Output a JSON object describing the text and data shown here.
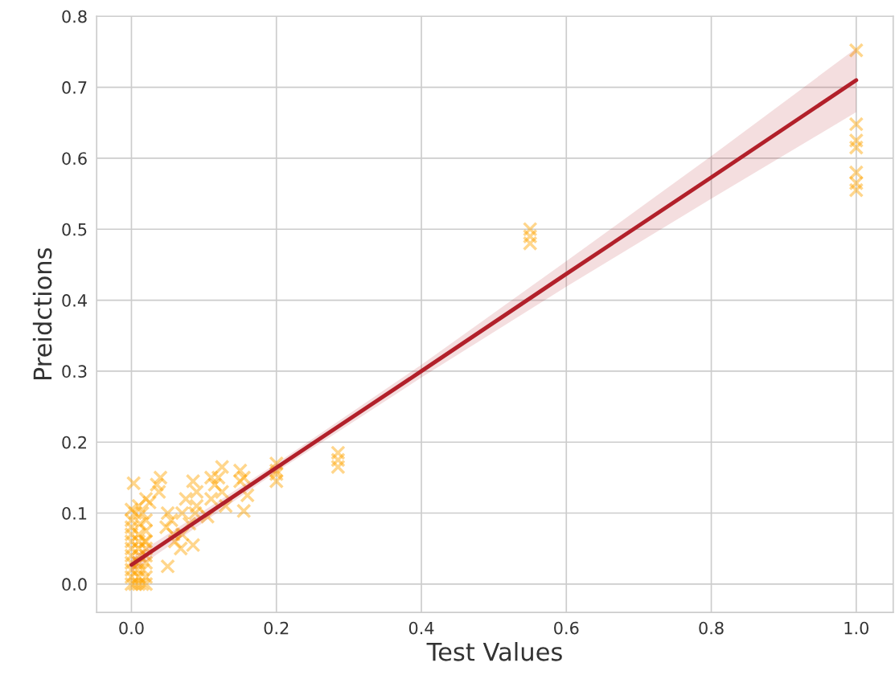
{
  "chart_data": {
    "type": "scatter",
    "xlabel": "Test Values",
    "ylabel": "Preidctions",
    "xlim": [
      -0.048,
      1.051
    ],
    "ylim": [
      -0.04,
      0.8
    ],
    "xticks": [
      {
        "value": 0,
        "label": "0.0"
      },
      0.2,
      0.4,
      0.6,
      0.8,
      {
        "value": 1,
        "label": "1.0"
      }
    ],
    "yticks": [
      {
        "value": 0,
        "label": "0.0"
      },
      0.1,
      0.2,
      0.3,
      0.4,
      0.5,
      0.6,
      0.7,
      0.8
    ],
    "grid": true,
    "series": [
      {
        "color": "#ffa500",
        "marker": "cross",
        "x": [
          0,
          0.005,
          0.01,
          0.015,
          0.02,
          0,
          0.01,
          0.02,
          0,
          0.008,
          0.016,
          0,
          0.01,
          0.02,
          0,
          0.012,
          0.02,
          0,
          0.01,
          0.02,
          0,
          0.01,
          0.02,
          0,
          0.01,
          0.02,
          0,
          0.012,
          0.02,
          0,
          0.005,
          0.015,
          0,
          0.01,
          0.02,
          0.003,
          0.025,
          0.018,
          0.035,
          0.04,
          0.038,
          0.05,
          0.055,
          0.048,
          0.05,
          0.058,
          0.06,
          0.07,
          0.068,
          0.075,
          0.07,
          0.085,
          0.09,
          0.088,
          0.08,
          0.085,
          0.09,
          0.11,
          0.115,
          0.11,
          0.105,
          0.125,
          0.12,
          0.125,
          0.13,
          0.15,
          0.155,
          0.15,
          0.16,
          0.155,
          0.2,
          0.2,
          0.2,
          0.2,
          0.285,
          0.285,
          0.285,
          0.55,
          0.55,
          0.55,
          1,
          1,
          1,
          1,
          1,
          1,
          1
        ],
        "values": [
          0,
          0,
          0,
          0,
          0,
          0.01,
          0.01,
          0.01,
          0.02,
          0.02,
          0.02,
          0.03,
          0.03,
          0.03,
          0.04,
          0.04,
          0.04,
          0.05,
          0.05,
          0.05,
          0.06,
          0.06,
          0.06,
          0.07,
          0.07,
          0.075,
          0.08,
          0.085,
          0.09,
          0.09,
          0.1,
          0.1,
          0.105,
          0.11,
          0.12,
          0.142,
          0.115,
          0.06,
          0.14,
          0.15,
          0.13,
          0.1,
          0.09,
          0.08,
          0.025,
          0.07,
          0.06,
          0.1,
          0.05,
          0.12,
          0.07,
          0.145,
          0.11,
          0.1,
          0.085,
          0.055,
          0.13,
          0.15,
          0.14,
          0.12,
          0.095,
          0.165,
          0.15,
          0.13,
          0.11,
          0.16,
          0.15,
          0.145,
          0.125,
          0.103,
          0.17,
          0.16,
          0.155,
          0.145,
          0.185,
          0.175,
          0.165,
          0.5,
          0.49,
          0.48,
          0.752,
          0.648,
          0.625,
          0.615,
          0.58,
          0.565,
          0.555
        ]
      },
      {
        "type": "line",
        "color": "#b2202a",
        "x": [
          0,
          0.2,
          0.4,
          0.6,
          0.8,
          1
        ],
        "values": [
          0.027,
          0.164,
          0.3,
          0.437,
          0.573,
          0.71
        ],
        "lower": [
          0.017,
          0.158,
          0.291,
          0.419,
          0.543,
          0.665
        ],
        "upper": [
          0.037,
          0.17,
          0.309,
          0.455,
          0.603,
          0.755
        ]
      }
    ]
  }
}
